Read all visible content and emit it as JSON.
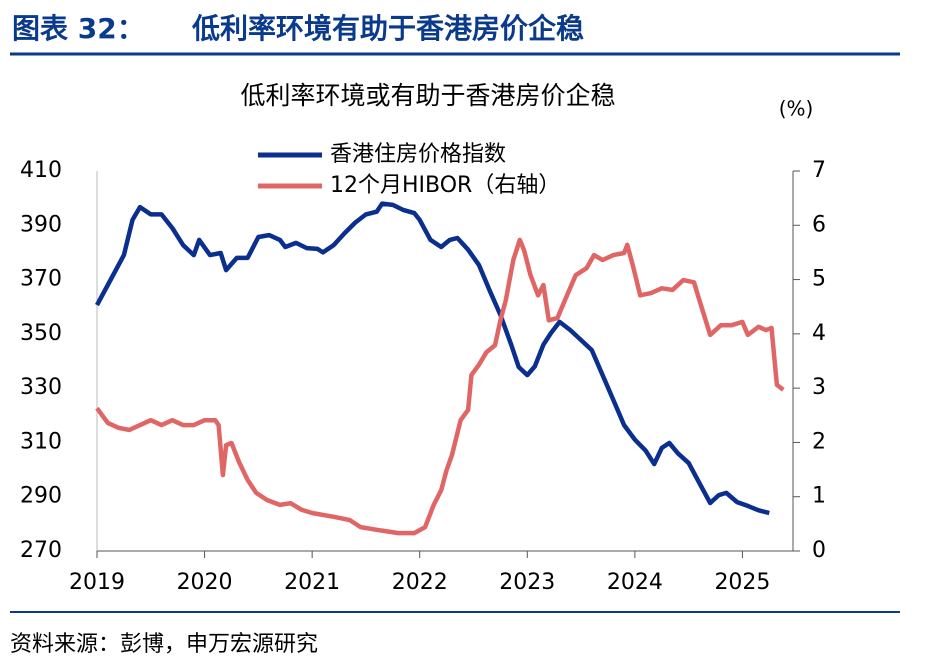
{
  "header": {
    "label": "图表 32：",
    "title": "低利率环境有助于香港房价企稳"
  },
  "source": "资料来源：彭博，申万宏源研究",
  "chart_data": {
    "type": "line",
    "title": "低利率环境或有助于香港房价企稳",
    "y2_unit": "(%)",
    "xlim": [
      2019,
      2025.47
    ],
    "xticks": [
      2019,
      2020,
      2021,
      2022,
      2023,
      2024,
      2025
    ],
    "ylim": [
      270,
      410
    ],
    "yticks": [
      270,
      290,
      310,
      330,
      350,
      370,
      390,
      410
    ],
    "y2lim": [
      0,
      7
    ],
    "y2ticks": [
      0,
      1,
      2,
      3,
      4,
      5,
      6,
      7
    ],
    "legend": "top",
    "series": [
      {
        "name": "香港住房价格指数",
        "color": "#0a2f8f",
        "x": [
          2019.0,
          2019.1,
          2019.25,
          2019.33,
          2019.4,
          2019.5,
          2019.6,
          2019.7,
          2019.8,
          2019.9,
          2019.95,
          2020.05,
          2020.15,
          2020.2,
          2020.3,
          2020.4,
          2020.5,
          2020.6,
          2020.7,
          2020.75,
          2020.85,
          2020.95,
          2021.05,
          2021.1,
          2021.2,
          2021.3,
          2021.4,
          2021.5,
          2021.6,
          2021.65,
          2021.75,
          2021.85,
          2021.95,
          2022.0,
          2022.1,
          2022.2,
          2022.28,
          2022.35,
          2022.45,
          2022.55,
          2022.65,
          2022.75,
          2022.85,
          2022.92,
          2023.0,
          2023.07,
          2023.15,
          2023.22,
          2023.3,
          2023.4,
          2023.5,
          2023.6,
          2023.7,
          2023.8,
          2023.9,
          2024.0,
          2024.1,
          2024.18,
          2024.25,
          2024.32,
          2024.4,
          2024.5,
          2024.6,
          2024.7,
          2024.78,
          2024.85,
          2024.95,
          2025.05,
          2025.15,
          2025.25
        ],
        "values": [
          360.6,
          368,
          379,
          392,
          396.7,
          394,
          394,
          389,
          382.7,
          379,
          384.6,
          379,
          379.8,
          373.5,
          378,
          378,
          385.7,
          386.4,
          384.6,
          382,
          383.5,
          381.6,
          381.3,
          380,
          382.7,
          387,
          391,
          394,
          395,
          398,
          397.5,
          395.6,
          394.5,
          392,
          384.6,
          382,
          384.6,
          385.3,
          381,
          375.4,
          366,
          357,
          346,
          337.8,
          334.8,
          338,
          346,
          350.3,
          354.4,
          351.4,
          347.7,
          344,
          334.8,
          325.6,
          316.4,
          311,
          307,
          302,
          308,
          309.8,
          306,
          302.4,
          295,
          287.7,
          290.6,
          291.4,
          288,
          286.6,
          285,
          284
        ]
      },
      {
        "name": "12个月HIBOR（右轴）",
        "color": "#e06666",
        "axis": "y2",
        "x": [
          2019.0,
          2019.1,
          2019.2,
          2019.3,
          2019.4,
          2019.5,
          2019.6,
          2019.7,
          2019.8,
          2019.9,
          2020.0,
          2020.1,
          2020.13,
          2020.17,
          2020.2,
          2020.25,
          2020.32,
          2020.4,
          2020.48,
          2020.58,
          2020.7,
          2020.8,
          2020.9,
          2021.0,
          2021.2,
          2021.35,
          2021.45,
          2021.6,
          2021.8,
          2021.95,
          2022.05,
          2022.13,
          2022.2,
          2022.25,
          2022.3,
          2022.38,
          2022.45,
          2022.48,
          2022.55,
          2022.62,
          2022.7,
          2022.75,
          2022.8,
          2022.87,
          2022.93,
          2022.97,
          2023.03,
          2023.1,
          2023.15,
          2023.2,
          2023.28,
          2023.35,
          2023.45,
          2023.55,
          2023.62,
          2023.7,
          2023.8,
          2023.9,
          2023.93,
          2023.98,
          2024.05,
          2024.15,
          2024.25,
          2024.35,
          2024.45,
          2024.55,
          2024.6,
          2024.7,
          2024.8,
          2024.9,
          2025.0,
          2025.05,
          2025.15,
          2025.22,
          2025.27,
          2025.32,
          2025.38
        ],
        "values": [
          2.63,
          2.36,
          2.27,
          2.23,
          2.32,
          2.41,
          2.32,
          2.41,
          2.32,
          2.32,
          2.41,
          2.41,
          2.32,
          1.4,
          1.95,
          1.99,
          1.64,
          1.31,
          1.07,
          0.94,
          0.85,
          0.88,
          0.76,
          0.7,
          0.63,
          0.57,
          0.44,
          0.39,
          0.33,
          0.33,
          0.44,
          0.85,
          1.12,
          1.49,
          1.77,
          2.41,
          2.6,
          3.24,
          3.43,
          3.66,
          3.79,
          4.25,
          4.62,
          5.36,
          5.73,
          5.54,
          5.08,
          4.71,
          4.9,
          4.25,
          4.29,
          4.62,
          5.08,
          5.21,
          5.45,
          5.36,
          5.45,
          5.49,
          5.64,
          5.27,
          4.71,
          4.75,
          4.84,
          4.81,
          4.99,
          4.95,
          4.62,
          3.98,
          4.16,
          4.16,
          4.22,
          3.98,
          4.13,
          4.07,
          4.11,
          3.06,
          2.97
        ]
      }
    ]
  }
}
